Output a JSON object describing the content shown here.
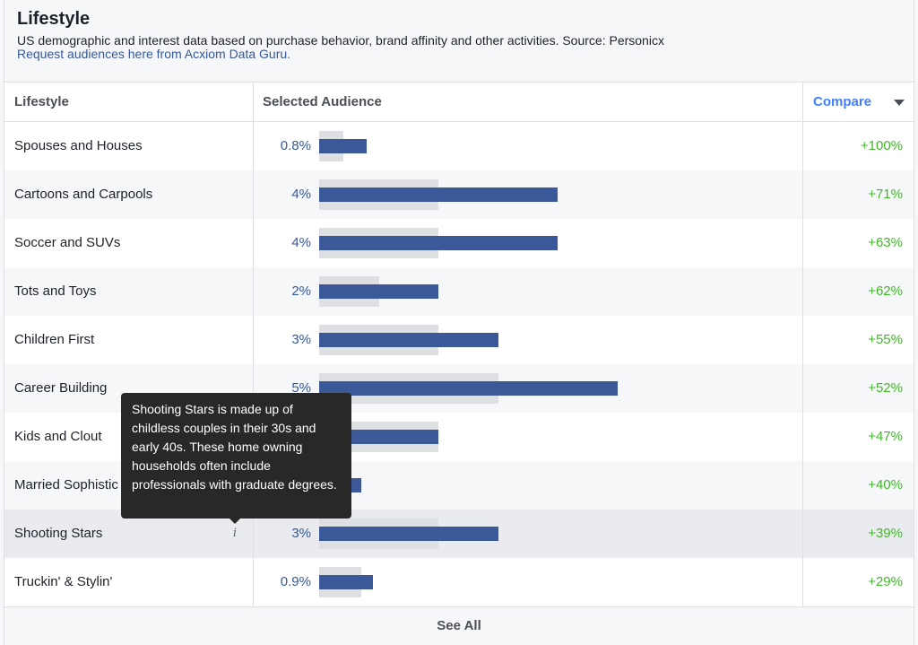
{
  "header": {
    "title": "Lifestyle",
    "subtitle": "US demographic and interest data based on purchase behavior, brand affinity and other activities. Source: Personicx",
    "link": "Request audiences here from Acxiom Data Guru."
  },
  "table": {
    "col_lifestyle": "Lifestyle",
    "col_audience": "Selected Audience",
    "col_compare": "Compare",
    "rows": [
      {
        "name": "Spouses and Houses",
        "pct": "0.8%",
        "selected": 0.8,
        "baseline": 0.4,
        "compare": "+100%"
      },
      {
        "name": "Cartoons and Carpools",
        "pct": "4%",
        "selected": 4,
        "baseline": 2,
        "compare": "+71%"
      },
      {
        "name": "Soccer and SUVs",
        "pct": "4%",
        "selected": 4,
        "baseline": 2,
        "compare": "+63%"
      },
      {
        "name": "Tots and Toys",
        "pct": "2%",
        "selected": 2,
        "baseline": 1,
        "compare": "+62%"
      },
      {
        "name": "Children First",
        "pct": "3%",
        "selected": 3,
        "baseline": 2,
        "compare": "+55%"
      },
      {
        "name": "Career Building",
        "pct": "5%",
        "selected": 5,
        "baseline": 3,
        "compare": "+52%"
      },
      {
        "name": "Kids and Clout",
        "pct": "",
        "selected": 2,
        "baseline": 2,
        "compare": "+47%"
      },
      {
        "name": "Married Sophistic",
        "pct": "",
        "selected": 0.7,
        "baseline": 0.5,
        "compare": "+40%"
      },
      {
        "name": "Shooting Stars",
        "pct": "3%",
        "selected": 3,
        "baseline": 2,
        "compare": "+39%"
      },
      {
        "name": "Truckin' & Stylin'",
        "pct": "0.9%",
        "selected": 0.9,
        "baseline": 0.7,
        "compare": "+29%"
      }
    ]
  },
  "tooltip": {
    "text": "Shooting Stars is made up of childless couples in their 30s and early 40s. These home owning households often include professionals with graduate degrees."
  },
  "footer": {
    "see_all": "See All"
  },
  "colors": {
    "bar": "#3b5998",
    "bar_baseline": "#dddfe2",
    "compare_positive": "#42b72a",
    "link": "#365899"
  }
}
